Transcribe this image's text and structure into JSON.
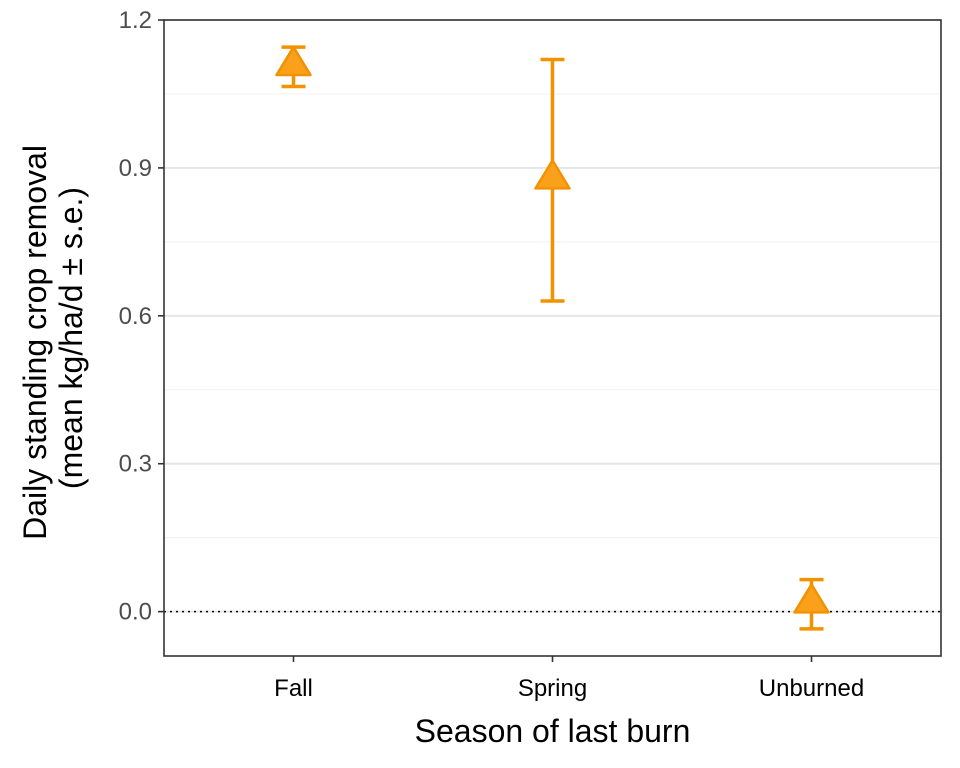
{
  "chart_data": {
    "type": "scatter",
    "xlabel": "Season of last burn",
    "ylabel": [
      "Daily standing crop removal",
      "(mean kg/ha/d ± s.e.)"
    ],
    "categories": [
      "Fall",
      "Spring",
      "Unburned"
    ],
    "series": [
      {
        "marker": "triangle",
        "color": "#f39200",
        "fill": "#f9a11b",
        "values": [
          1.11,
          0.88,
          0.02
        ],
        "error_low": [
          1.065,
          0.63,
          -0.035
        ],
        "error_high": [
          1.145,
          1.12,
          0.065
        ]
      }
    ],
    "ylim": [
      -0.09,
      1.2
    ],
    "yticks": [
      0.0,
      0.3,
      0.6,
      0.9,
      1.2
    ],
    "ytick_labels": [
      "0.0",
      "0.3",
      "0.6",
      "0.9",
      "1.2"
    ],
    "reference_line": {
      "y": 0,
      "style": "dotted"
    },
    "grid": "horizontal"
  }
}
